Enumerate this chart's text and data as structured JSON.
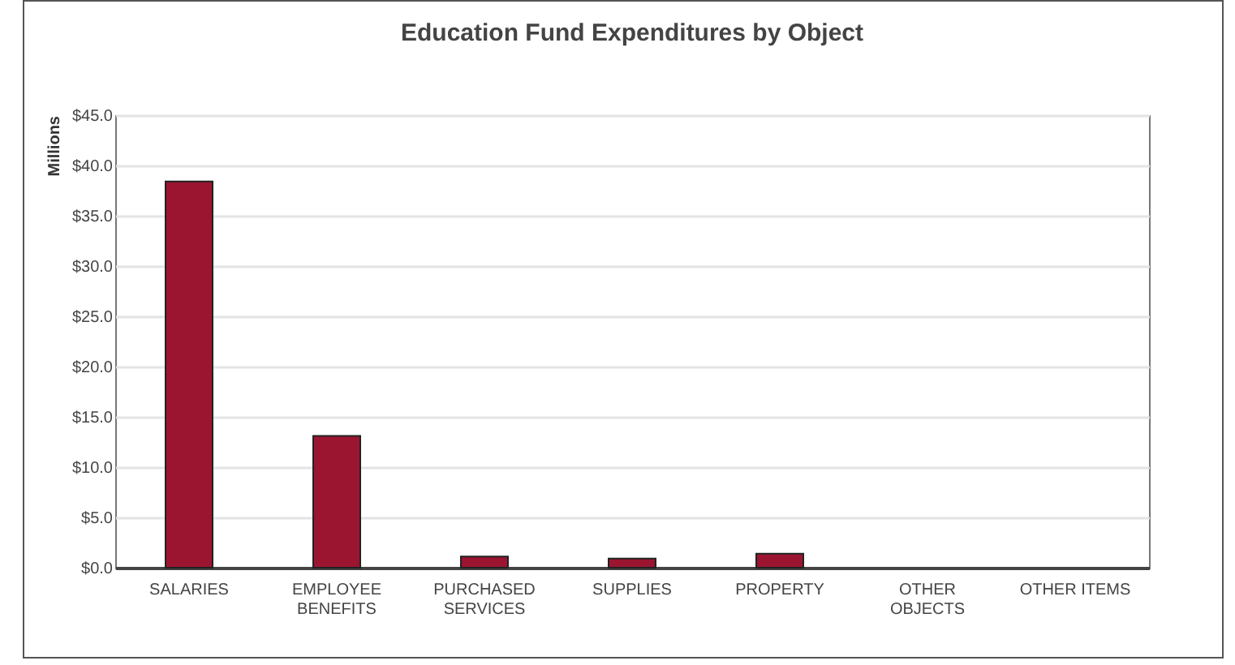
{
  "chart_data": {
    "type": "bar",
    "title": "Education Fund Expenditures by Object",
    "ylabel": "Millions",
    "categories": [
      "SALARIES",
      "EMPLOYEE BENEFITS",
      "PURCHASED SERVICES",
      "SUPPLIES",
      "PROPERTY",
      "OTHER OBJECTS",
      "OTHER ITEMS"
    ],
    "values": [
      38.4,
      13.1,
      1.1,
      0.9,
      1.4,
      0,
      0
    ],
    "color": "#9b1530",
    "ylim": [
      0,
      45
    ],
    "yticks": [
      {
        "value": 0,
        "label": "$0.0"
      },
      {
        "value": 5,
        "label": "$5.0"
      },
      {
        "value": 10,
        "label": "$10.0"
      },
      {
        "value": 15,
        "label": "$15.0"
      },
      {
        "value": 20,
        "label": "$20.0"
      },
      {
        "value": 25,
        "label": "$25.0"
      },
      {
        "value": 30,
        "label": "$30.0"
      },
      {
        "value": 35,
        "label": "$35.0"
      },
      {
        "value": 40,
        "label": "$40.0"
      },
      {
        "value": 45,
        "label": "$45.0"
      }
    ],
    "grid": "y"
  }
}
